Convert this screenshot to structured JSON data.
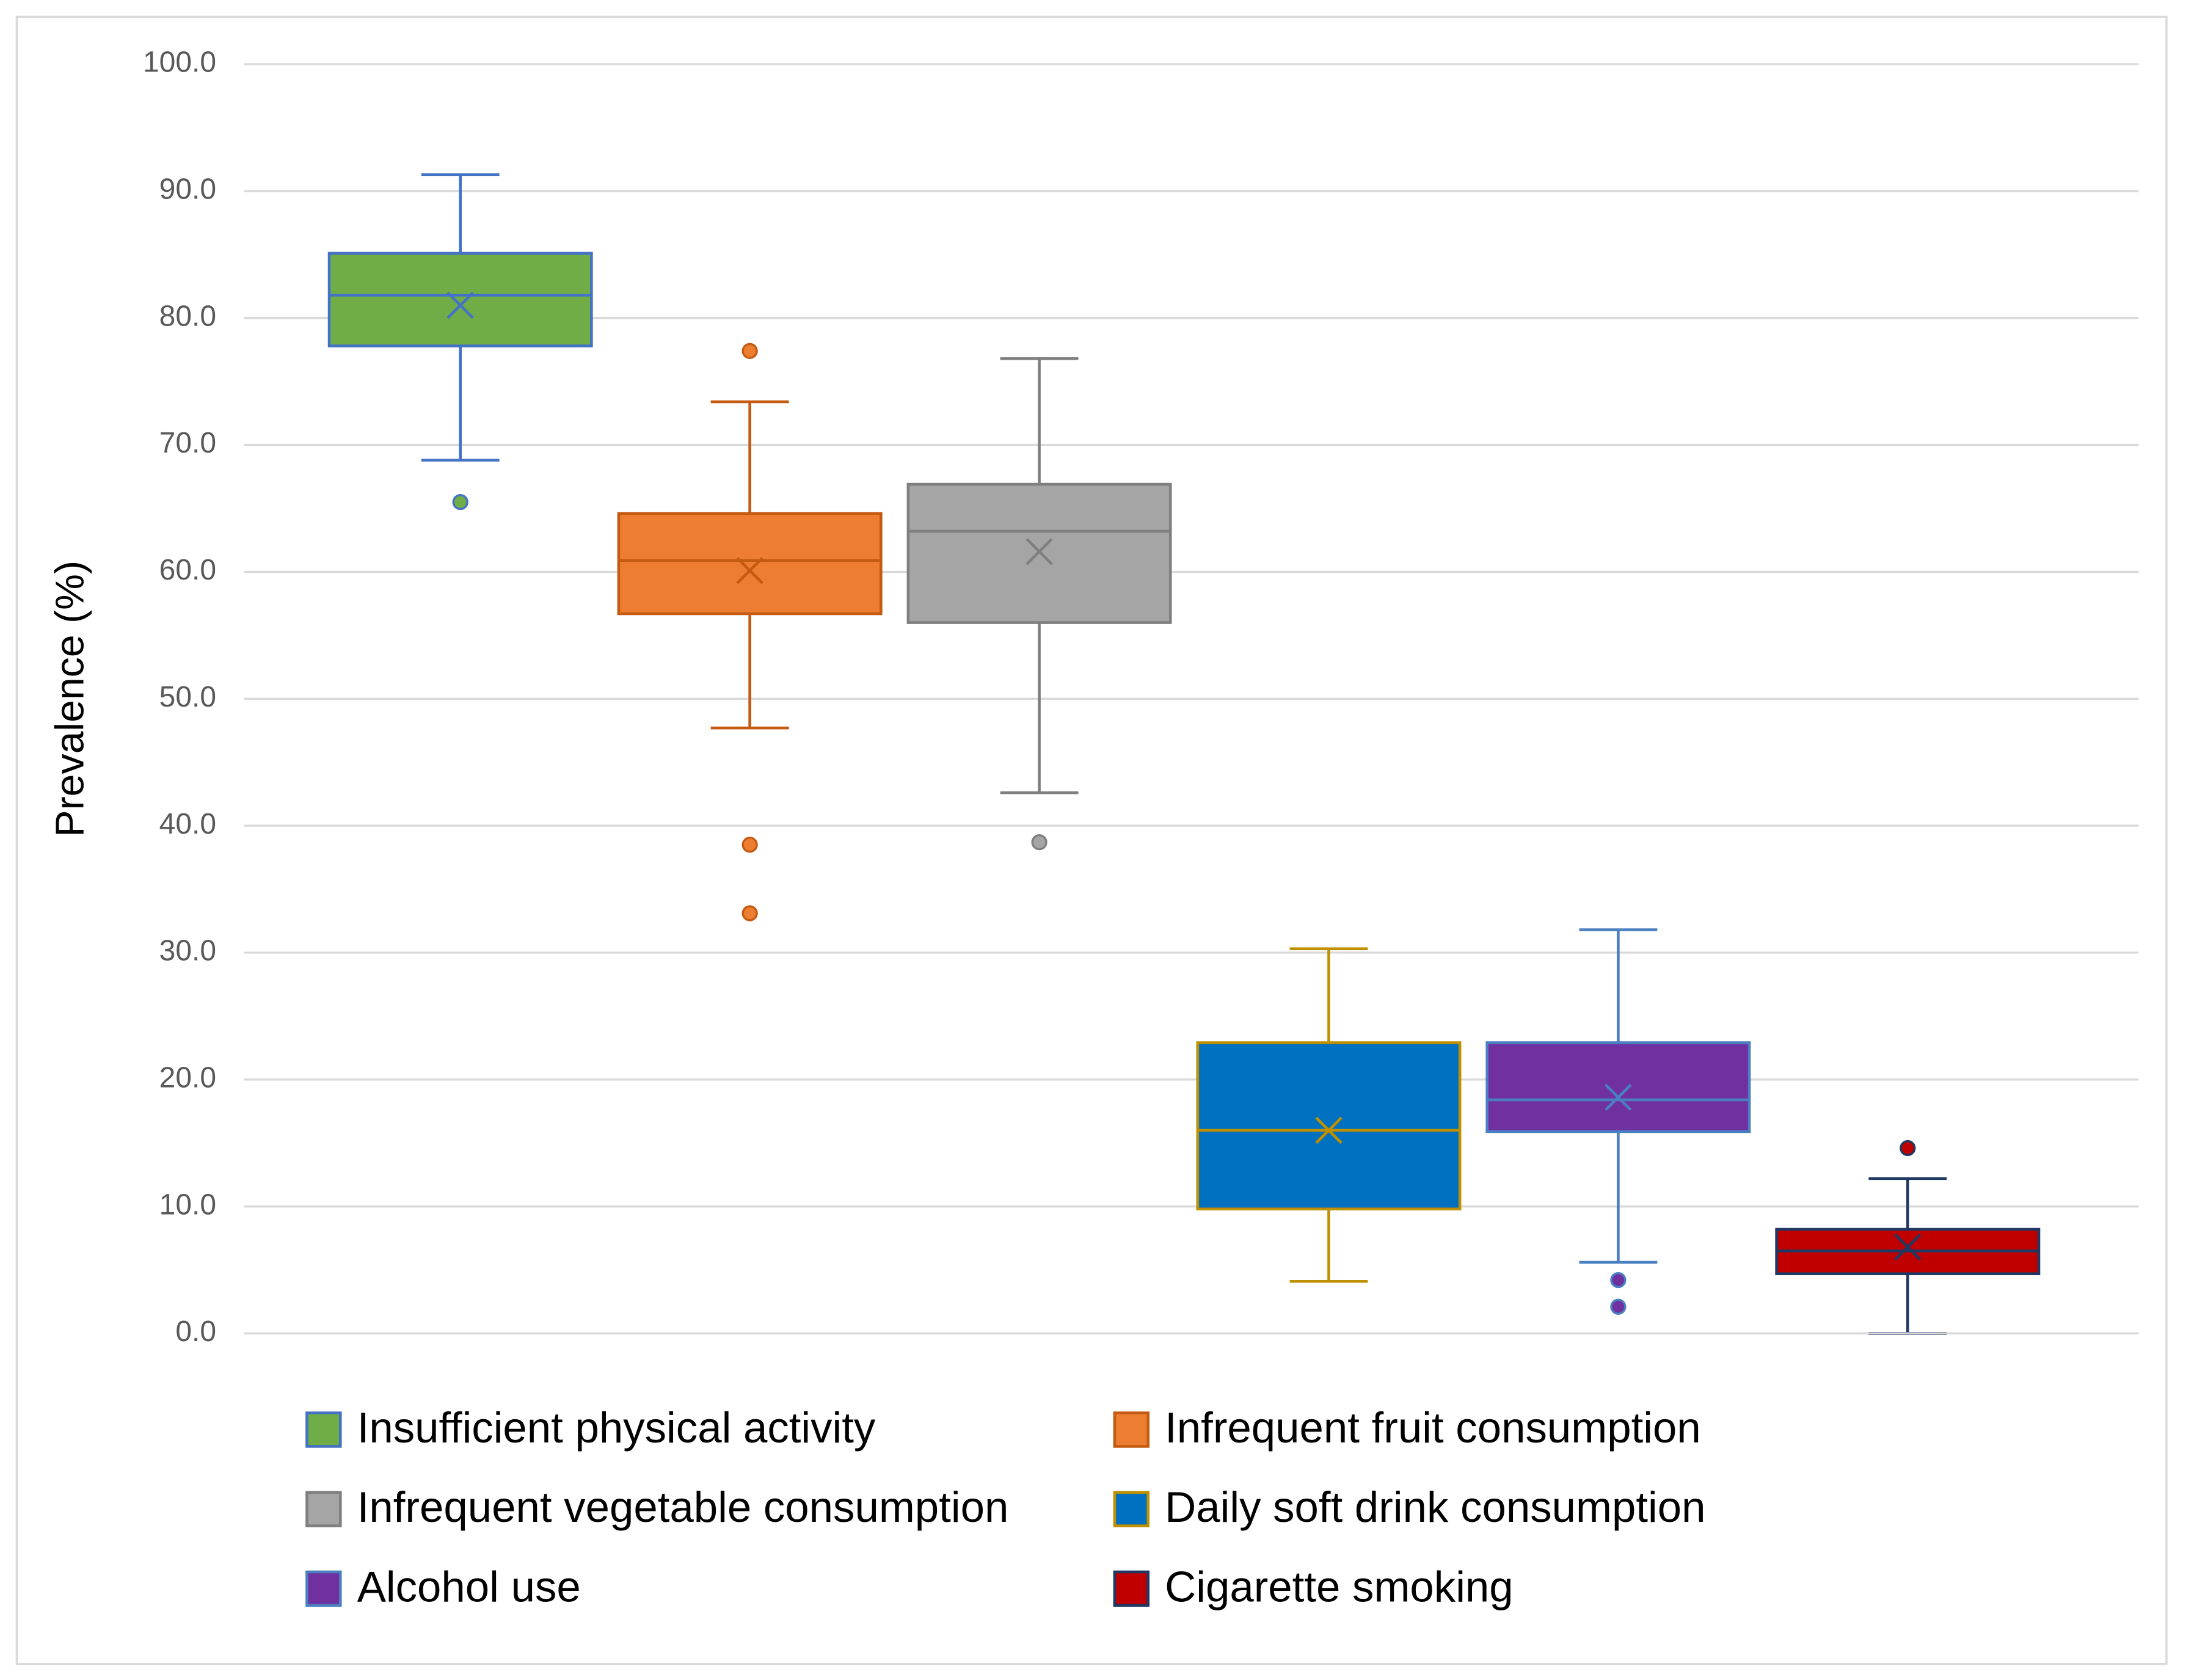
{
  "chart_data": {
    "type": "box",
    "y_label": "Prevalence (%)",
    "ylim": [
      0,
      100
    ],
    "yticks": [
      {
        "value": 0,
        "label": "0.0"
      },
      {
        "value": 10,
        "label": "10.0"
      },
      {
        "value": 20,
        "label": "20.0"
      },
      {
        "value": 30,
        "label": "30.0"
      },
      {
        "value": 40,
        "label": "40.0"
      },
      {
        "value": 50,
        "label": "50.0"
      },
      {
        "value": 60,
        "label": "60.0"
      },
      {
        "value": 70,
        "label": "70.0"
      },
      {
        "value": 80,
        "label": "80.0"
      },
      {
        "value": 90,
        "label": "90.0"
      },
      {
        "value": 100,
        "label": "100.0"
      }
    ],
    "grid": true,
    "legend": "bottom",
    "series": [
      {
        "name": "Insufficient physical activity",
        "color": "#70ad47",
        "border_color": "#4472c4",
        "min": 68.8,
        "q1": 77.8,
        "median": 81.8,
        "q3": 85.1,
        "max": 91.3,
        "mean": 81.0,
        "outliers": [
          65.5
        ]
      },
      {
        "name": "Infrequent fruit consumption",
        "color": "#ed7d31",
        "border_color": "#c55a11",
        "min": 47.7,
        "q1": 56.7,
        "median": 60.9,
        "q3": 64.6,
        "max": 73.4,
        "mean": 60.1,
        "outliers": [
          77.4,
          38.5,
          33.1
        ]
      },
      {
        "name": "Infrequent vegetable consumption",
        "color": "#a5a5a5",
        "border_color": "#7f7f7f",
        "min": 42.6,
        "q1": 56.0,
        "median": 63.2,
        "q3": 66.9,
        "max": 76.8,
        "mean": 61.6,
        "outliers": [
          38.7
        ]
      },
      {
        "name": "Daily soft drink consumption",
        "color": "#0070c0",
        "border_color": "#bf9000",
        "min": 4.1,
        "q1": 9.8,
        "median": 16.0,
        "q3": 22.9,
        "max": 30.3,
        "mean": 16.0,
        "outliers": []
      },
      {
        "name": "Alcohol use",
        "color": "#7030a0",
        "border_color": "#4a7fc1",
        "min": 5.6,
        "q1": 15.9,
        "median": 18.4,
        "q3": 22.9,
        "max": 31.8,
        "mean": 18.6,
        "outliers": [
          4.2,
          2.1
        ]
      },
      {
        "name": "Cigarette smoking",
        "color": "#c00000",
        "border_color": "#203864",
        "min": 0,
        "q1": 4.7,
        "median": 6.5,
        "q3": 8.2,
        "max": 12.2,
        "mean": 6.8,
        "outliers": [
          14.6
        ]
      }
    ]
  }
}
